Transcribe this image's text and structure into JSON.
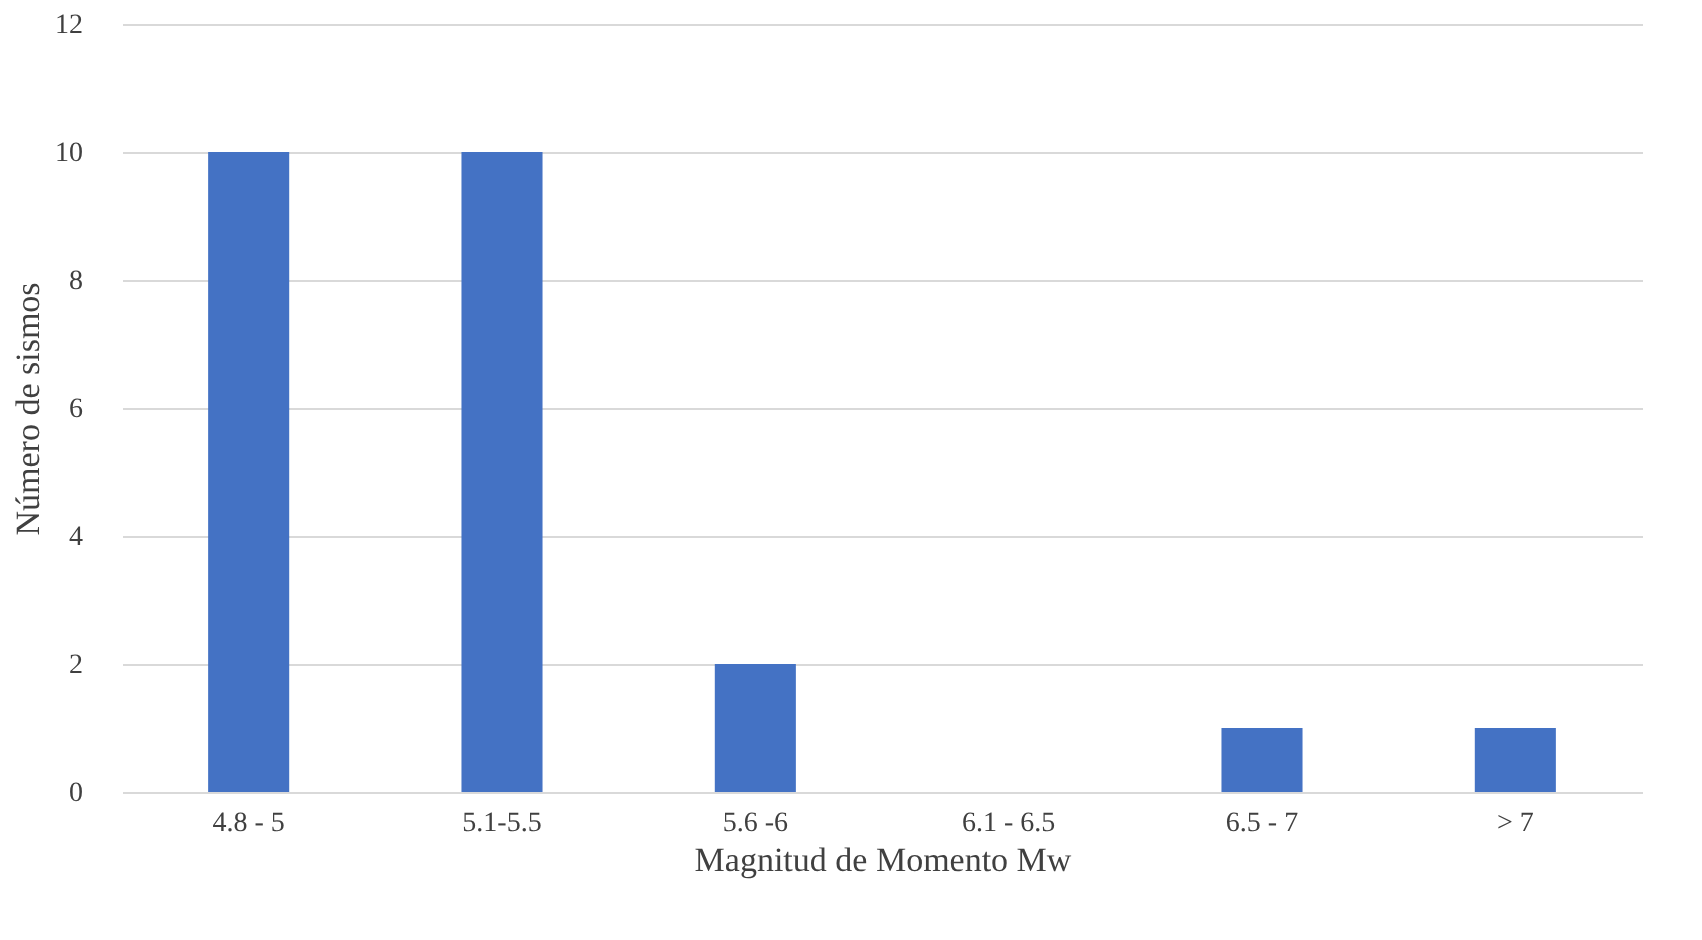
{
  "chart_data": {
    "type": "bar",
    "xlabel": "Magnitud de Momento Mw",
    "ylabel": "Número de sismos",
    "categories": [
      "4.8 - 5",
      "5.1-5.5",
      "5.6 -6",
      "6.1 - 6.5",
      "6.5 - 7",
      "> 7"
    ],
    "values": [
      10,
      10,
      2,
      0,
      1,
      1
    ],
    "color": "#4472c4",
    "ylim": [
      0,
      12
    ],
    "yticks": [
      0,
      2,
      4,
      6,
      8,
      10,
      12
    ],
    "grid": "y"
  }
}
